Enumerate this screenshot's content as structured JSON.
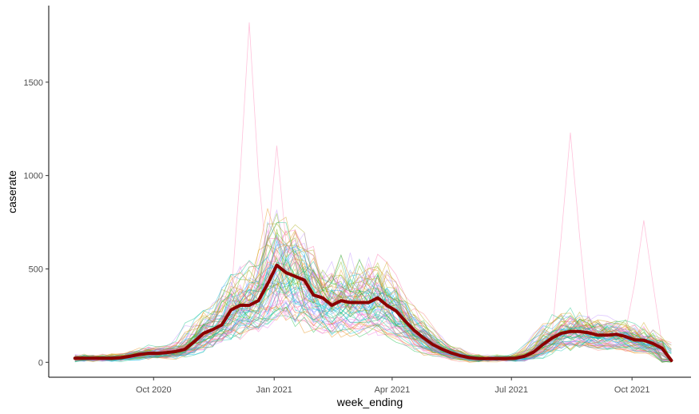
{
  "chart_data": {
    "type": "line",
    "xlabel": "week_ending",
    "ylabel": "caserate",
    "x_ticks": [
      "Oct 2020",
      "Jan 2021",
      "Apr 2021",
      "Jul 2021",
      "Oct 2021"
    ],
    "x_tick_dates": [
      "2020-10-01",
      "2021-01-01",
      "2021-04-01",
      "2021-07-01",
      "2021-10-01"
    ],
    "y_ticks": [
      0,
      500,
      1000,
      1500
    ],
    "xlim": [
      "2020-07-13",
      "2021-11-15"
    ],
    "ylim": [
      -80,
      1910
    ],
    "grid": false,
    "legend": "none",
    "line_colors": [
      "#F8766D",
      "#E58700",
      "#C99800",
      "#A3A500",
      "#6BB100",
      "#00BA38",
      "#00BF7D",
      "#00C0AF",
      "#00BCD8",
      "#00B0F6",
      "#619CFF",
      "#B983FF",
      "#E76BF3",
      "#FD61D1",
      "#FF67A4"
    ],
    "mean_color": "#8B0000",
    "weeks": [
      "2020-08-02",
      "2020-08-09",
      "2020-08-16",
      "2020-08-23",
      "2020-08-30",
      "2020-09-06",
      "2020-09-13",
      "2020-09-20",
      "2020-09-27",
      "2020-10-04",
      "2020-10-11",
      "2020-10-18",
      "2020-10-25",
      "2020-11-01",
      "2020-11-08",
      "2020-11-15",
      "2020-11-22",
      "2020-11-29",
      "2020-12-06",
      "2020-12-13",
      "2020-12-20",
      "2020-12-27",
      "2021-01-03",
      "2021-01-10",
      "2021-01-17",
      "2021-01-24",
      "2021-01-31",
      "2021-02-07",
      "2021-02-14",
      "2021-02-21",
      "2021-02-28",
      "2021-03-07",
      "2021-03-14",
      "2021-03-21",
      "2021-03-28",
      "2021-04-04",
      "2021-04-11",
      "2021-04-18",
      "2021-04-25",
      "2021-05-02",
      "2021-05-09",
      "2021-05-16",
      "2021-05-23",
      "2021-05-30",
      "2021-06-06",
      "2021-06-13",
      "2021-06-20",
      "2021-06-27",
      "2021-07-04",
      "2021-07-11",
      "2021-07-18",
      "2021-07-25",
      "2021-08-01",
      "2021-08-08",
      "2021-08-15",
      "2021-08-22",
      "2021-08-29",
      "2021-09-05",
      "2021-09-12",
      "2021-09-19",
      "2021-09-26",
      "2021-10-03",
      "2021-10-10",
      "2021-10-17",
      "2021-10-24",
      "2021-10-31"
    ],
    "mean_series": [
      22,
      22,
      22,
      22,
      22,
      25,
      32,
      42,
      48,
      48,
      52,
      58,
      70,
      110,
      155,
      175,
      200,
      280,
      305,
      305,
      330,
      420,
      520,
      480,
      460,
      440,
      360,
      345,
      305,
      330,
      320,
      320,
      320,
      345,
      305,
      275,
      220,
      170,
      130,
      95,
      70,
      50,
      35,
      25,
      20,
      20,
      20,
      20,
      22,
      32,
      55,
      95,
      130,
      155,
      165,
      165,
      158,
      145,
      145,
      150,
      138,
      120,
      118,
      100,
      75,
      10
    ],
    "peak_traces": [
      {
        "week": "2020-12-13",
        "value": 1820
      },
      {
        "week": "2021-01-03",
        "value": 1160
      },
      {
        "week": "2021-08-15",
        "value": 1230
      },
      {
        "week": "2021-10-10",
        "value": 760
      }
    ]
  }
}
